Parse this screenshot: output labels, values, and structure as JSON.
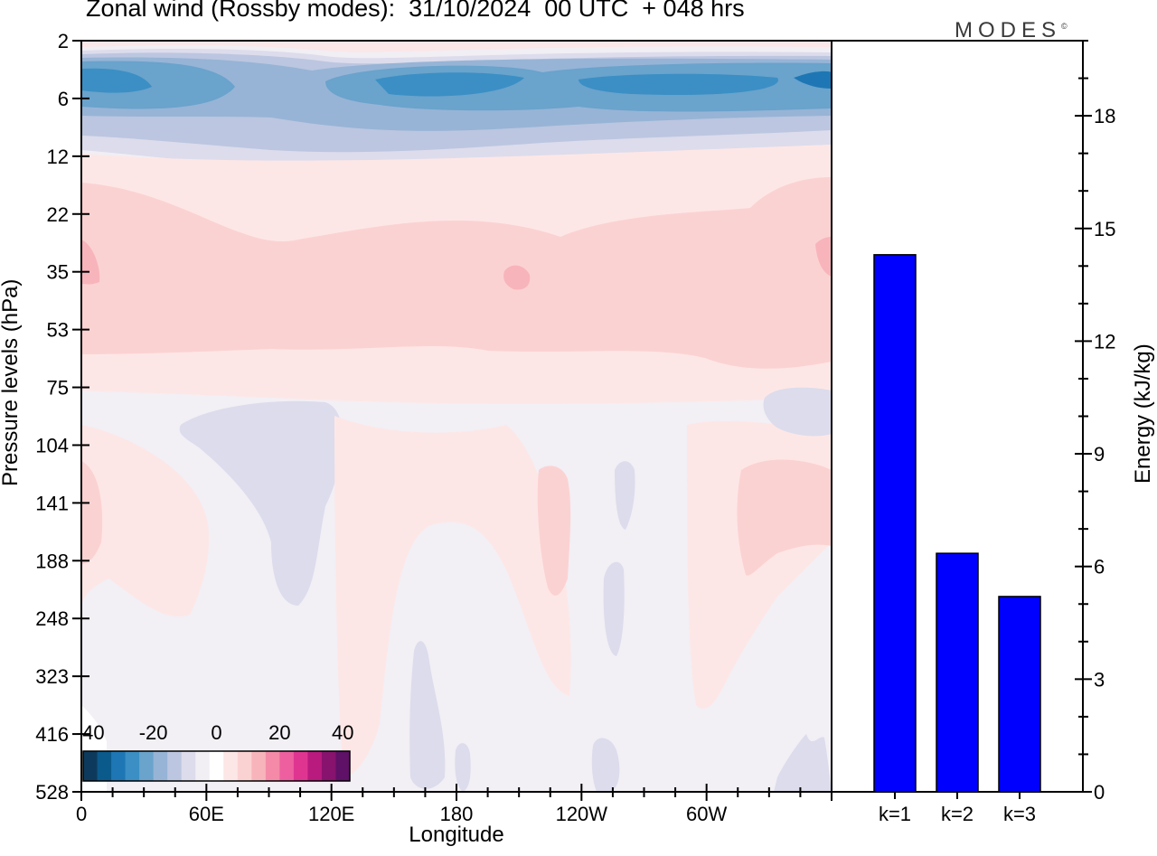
{
  "title": "Zonal wind (Rossby modes):  31/10/2024  00 UTC  + 048 hrs",
  "logo_text": "MODES",
  "logo_mark": "©",
  "colors": {
    "bar": "#0000ff",
    "scale": [
      "#0d3a5c",
      "#0b5a8c",
      "#1e77b4",
      "#3b8fc4",
      "#6aa3cc",
      "#97b4d6",
      "#bcc6e0",
      "#dcdcec",
      "#f1eef4",
      "#ffffff",
      "#fde7e6",
      "#fbd2d2",
      "#f8b4bb",
      "#f48aa8",
      "#ee5fa0",
      "#df3591",
      "#b81a7e",
      "#87136e",
      "#5e1166"
    ]
  },
  "chart_data": [
    {
      "type": "heatmap",
      "title": "Zonal wind (Rossby modes):  31/10/2024  00 UTC  + 048 hrs",
      "xlabel": "Longitude",
      "ylabel": "Pressure levels (hPa)",
      "x_ticks": [
        "0",
        "60E",
        "120E",
        "180",
        "120W",
        "60W"
      ],
      "y_ticks": [
        "2",
        "6",
        "12",
        "22",
        "35",
        "53",
        "75",
        "104",
        "141",
        "188",
        "248",
        "323",
        "416",
        "528"
      ],
      "colorbar": {
        "ticks": [
          "-40",
          "-20",
          "0",
          "20",
          "40"
        ],
        "range": [
          -40,
          40
        ]
      },
      "bands": [
        {
          "level": "2",
          "value": 3
        },
        {
          "level": "6",
          "value": -22
        },
        {
          "level": "12",
          "value": -4
        },
        {
          "level": "22",
          "value": 7
        },
        {
          "level": "35",
          "value": 11
        },
        {
          "level": "53",
          "value": 9
        },
        {
          "level": "75",
          "value": 2
        },
        {
          "level": "104",
          "value": -2
        },
        {
          "level": "141",
          "value": 3
        },
        {
          "level": "188",
          "value": 1
        },
        {
          "level": "248",
          "value": -1
        },
        {
          "level": "323",
          "value": -1
        },
        {
          "level": "416",
          "value": -1
        },
        {
          "level": "528",
          "value": 0
        }
      ]
    },
    {
      "type": "bar",
      "categories": [
        "k=1",
        "k=2",
        "k=3"
      ],
      "values": [
        14.3,
        6.35,
        5.2
      ],
      "ylabel": "Energy (kJ/kg)",
      "y_ticks": [
        "0",
        "3",
        "6",
        "9",
        "12",
        "15",
        "18"
      ],
      "ylim": [
        0,
        20
      ]
    }
  ]
}
